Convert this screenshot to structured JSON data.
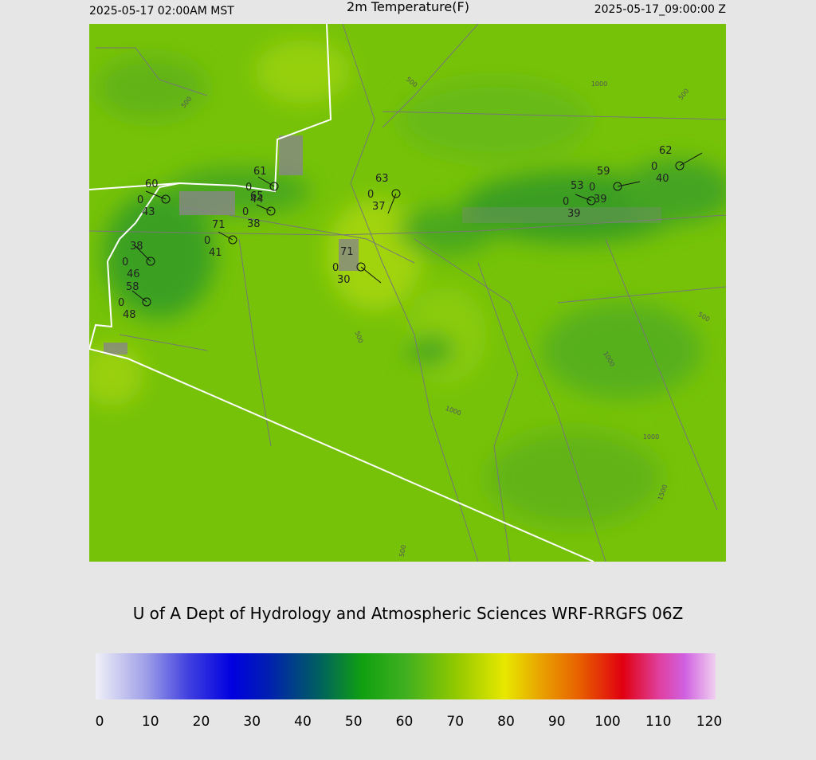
{
  "header": {
    "left": "2025-05-17 02:00AM MST",
    "title": "2m Temperature(F)",
    "right": "2025-05-17_09:00:00 Z"
  },
  "stations": [
    {
      "temperature": 60,
      "wind": 0,
      "dewpoint": 43
    },
    {
      "temperature": 61,
      "wind": 0,
      "dewpoint": 44
    },
    {
      "temperature": 65,
      "wind": 0,
      "dewpoint": 38
    },
    {
      "temperature": 71,
      "wind": 0,
      "dewpoint": 41
    },
    {
      "temperature": 38,
      "wind": 0,
      "dewpoint": 46
    },
    {
      "temperature": 58,
      "wind": 0,
      "dewpoint": 48
    },
    {
      "temperature": 71,
      "wind": 0,
      "dewpoint": 30
    },
    {
      "temperature": 63,
      "wind": 0,
      "dewpoint": 37
    },
    {
      "temperature": 53,
      "wind": 0,
      "dewpoint": 39
    },
    {
      "temperature": 59,
      "wind": 0,
      "dewpoint": 39
    },
    {
      "temperature": 62,
      "wind": 0,
      "dewpoint": 40
    }
  ],
  "contour_labels": [
    500,
    500,
    1000,
    500,
    500,
    1000,
    1000,
    1000,
    1500,
    500,
    500
  ],
  "credit": "U of A Dept of Hydrology and Atmospheric Sciences WRF-RRGFS 06Z",
  "colorbar": {
    "ticks": [
      0,
      10,
      20,
      30,
      40,
      50,
      60,
      70,
      80,
      90,
      100,
      110,
      120
    ]
  }
}
